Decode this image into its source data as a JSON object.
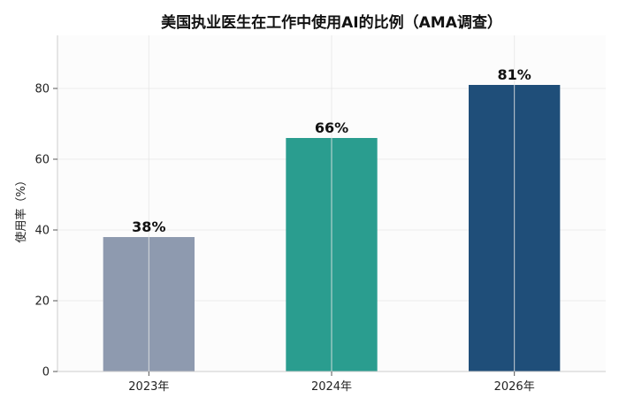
{
  "chart_data": {
    "type": "bar",
    "title": "美国执业医生在工作中使用AI的比例（AMA调查）",
    "xlabel": "",
    "ylabel": "使用率（%）",
    "categories": [
      "2023年",
      "2024年",
      "2026年"
    ],
    "values": [
      38,
      66,
      81
    ],
    "data_labels": [
      "38%",
      "66%",
      "81%"
    ],
    "colors": [
      "#8e9aaf",
      "#2a9d8f",
      "#1f4e79"
    ],
    "ylim": [
      0,
      95
    ],
    "yticks": [
      0,
      20,
      40,
      60,
      80
    ],
    "grid": true,
    "legend": "none"
  }
}
